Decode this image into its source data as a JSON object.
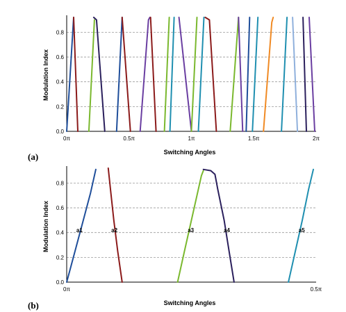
{
  "colors": {
    "blue": "#1f4e9a",
    "darkred": "#8b1a1a",
    "green": "#7ab82e",
    "navy": "#2a1f5c",
    "purple": "#6a3ea1",
    "teal": "#1f8fb0",
    "orange": "#f08a24",
    "lightblue": "#8fb0dc",
    "grid": "#9a9a9a"
  },
  "chart_data": [
    {
      "type": "line",
      "panel_label": "(a)",
      "xlabel": "Switching Angles",
      "ylabel": "Modulation Index",
      "xlim": [
        0,
        360
      ],
      "ylim": [
        0,
        0.92
      ],
      "x_ticks": [
        {
          "value": 0,
          "label": "0π"
        },
        {
          "value": 90,
          "label": "0.5π"
        },
        {
          "value": 180,
          "label": "1π"
        },
        {
          "value": 270,
          "label": "1.5π"
        },
        {
          "value": 360,
          "label": "2π"
        }
      ],
      "y_ticks": [
        {
          "value": 0,
          "label": "0.0"
        },
        {
          "value": 0.2,
          "label": "0.2"
        },
        {
          "value": 0.4,
          "label": "0.4"
        },
        {
          "value": 0.6,
          "label": "0.6"
        },
        {
          "value": 0.8,
          "label": "0.8"
        }
      ],
      "grid": true,
      "series": [
        {
          "color": "blue",
          "points": [
            [
              0,
              0
            ],
            [
              10,
              0.92
            ]
          ]
        },
        {
          "color": "darkred",
          "points": [
            [
              10,
              0.92
            ],
            [
              16,
              0
            ]
          ]
        },
        {
          "color": "green",
          "points": [
            [
              32,
              0
            ],
            [
              40,
              0.9
            ]
          ]
        },
        {
          "color": "navy",
          "points": [
            [
              39,
              0.92
            ],
            [
              43,
              0.9
            ],
            [
              55,
              0
            ]
          ]
        },
        {
          "color": "blue",
          "points": [
            [
              72,
              0
            ],
            [
              80,
              0.92
            ]
          ]
        },
        {
          "color": "darkred",
          "points": [
            [
              80,
              0.92
            ],
            [
              92,
              0
            ]
          ]
        },
        {
          "color": "purple",
          "points": [
            [
              106,
              0
            ],
            [
              118,
              0.9
            ],
            [
              120,
              0.92
            ]
          ]
        },
        {
          "color": "darkred",
          "points": [
            [
              121,
              0.92
            ],
            [
              129,
              0
            ]
          ]
        },
        {
          "color": "green",
          "points": [
            [
              141,
              0
            ],
            [
              148,
              0.92
            ]
          ]
        },
        {
          "color": "teal",
          "points": [
            [
              149,
              0
            ],
            [
              155,
              0.92
            ]
          ]
        },
        {
          "color": "purple",
          "points": [
            [
              162,
              0.92
            ],
            [
              180,
              0
            ]
          ]
        },
        {
          "color": "green",
          "points": [
            [
              180,
              0
            ],
            [
              188,
              0.92
            ]
          ]
        },
        {
          "color": "teal",
          "points": [
            [
              190,
              0
            ],
            [
              198,
              0.92
            ]
          ]
        },
        {
          "color": "darkred",
          "points": [
            [
              200,
              0.92
            ],
            [
              206,
              0.9
            ],
            [
              216,
              0
            ]
          ]
        },
        {
          "color": "green",
          "points": [
            [
              236,
              0
            ],
            [
              248,
              0.92
            ]
          ]
        },
        {
          "color": "purple",
          "points": [
            [
              248,
              0.92
            ],
            [
              254,
              0
            ]
          ]
        },
        {
          "color": "blue",
          "points": [
            [
              259,
              0
            ],
            [
              264,
              0.92
            ]
          ]
        },
        {
          "color": "teal",
          "points": [
            [
              268,
              0
            ],
            [
              276,
              0.92
            ]
          ]
        },
        {
          "color": "orange",
          "points": [
            [
              284,
              0
            ],
            [
              296,
              0.88
            ],
            [
              298,
              0.92
            ]
          ]
        },
        {
          "color": "teal",
          "points": [
            [
              310,
              0
            ],
            [
              318,
              0.92
            ]
          ]
        },
        {
          "color": "lightblue",
          "points": [
            [
              326,
              0.92
            ],
            [
              333,
              0
            ]
          ]
        },
        {
          "color": "navy",
          "points": [
            [
              341,
              0.92
            ],
            [
              346,
              0
            ]
          ]
        },
        {
          "color": "purple",
          "points": [
            [
              350,
              0.92
            ],
            [
              358,
              0
            ]
          ]
        }
      ]
    },
    {
      "type": "line",
      "panel_label": "(b)",
      "xlabel": "Switching Angles",
      "ylabel": "Modulation Index",
      "xlim": [
        0,
        90
      ],
      "ylim": [
        0,
        0.92
      ],
      "x_ticks": [
        {
          "value": 0,
          "label": "0π"
        },
        {
          "value": 90,
          "label": "0.5π"
        }
      ],
      "y_ticks": [
        {
          "value": 0,
          "label": "0.0"
        },
        {
          "value": 0.2,
          "label": "0.2"
        },
        {
          "value": 0.4,
          "label": "0.4"
        },
        {
          "value": 0.6,
          "label": "0.6"
        },
        {
          "value": 0.8,
          "label": "0.8"
        }
      ],
      "grid": true,
      "series": [
        {
          "name": "a1",
          "color": "blue",
          "label_at": [
            4.6,
            0.42
          ],
          "points": [
            [
              0,
              0
            ],
            [
              3,
              0.25
            ],
            [
              6,
              0.5
            ],
            [
              8.6,
              0.72
            ],
            [
              10.5,
              0.91
            ]
          ]
        },
        {
          "name": "a2",
          "color": "darkred",
          "label_at": [
            17.2,
            0.42
          ],
          "points": [
            [
              15,
              0.92
            ],
            [
              15.8,
              0.75
            ],
            [
              17,
              0.5
            ],
            [
              18.4,
              0.25
            ],
            [
              20,
              0
            ]
          ]
        },
        {
          "name": "a3",
          "color": "green",
          "label_at": [
            44.8,
            0.42
          ],
          "points": [
            [
              40,
              0
            ],
            [
              42.5,
              0.25
            ],
            [
              45,
              0.5
            ],
            [
              47.5,
              0.75
            ],
            [
              48.6,
              0.86
            ],
            [
              49.3,
              0.9
            ]
          ]
        },
        {
          "name": "a4",
          "color": "navy",
          "label_at": [
            57.8,
            0.42
          ],
          "points": [
            [
              49.3,
              0.91
            ],
            [
              52,
              0.9
            ],
            [
              53.5,
              0.87
            ],
            [
              54.5,
              0.75
            ],
            [
              56.8,
              0.5
            ],
            [
              58.6,
              0.25
            ],
            [
              60.4,
              0
            ]
          ]
        },
        {
          "name": "a5",
          "color": "teal",
          "label_at": [
            84.8,
            0.42
          ],
          "points": [
            [
              80,
              0
            ],
            [
              82.5,
              0.25
            ],
            [
              85,
              0.5
            ],
            [
              87.3,
              0.75
            ],
            [
              89,
              0.91
            ]
          ]
        }
      ]
    }
  ]
}
